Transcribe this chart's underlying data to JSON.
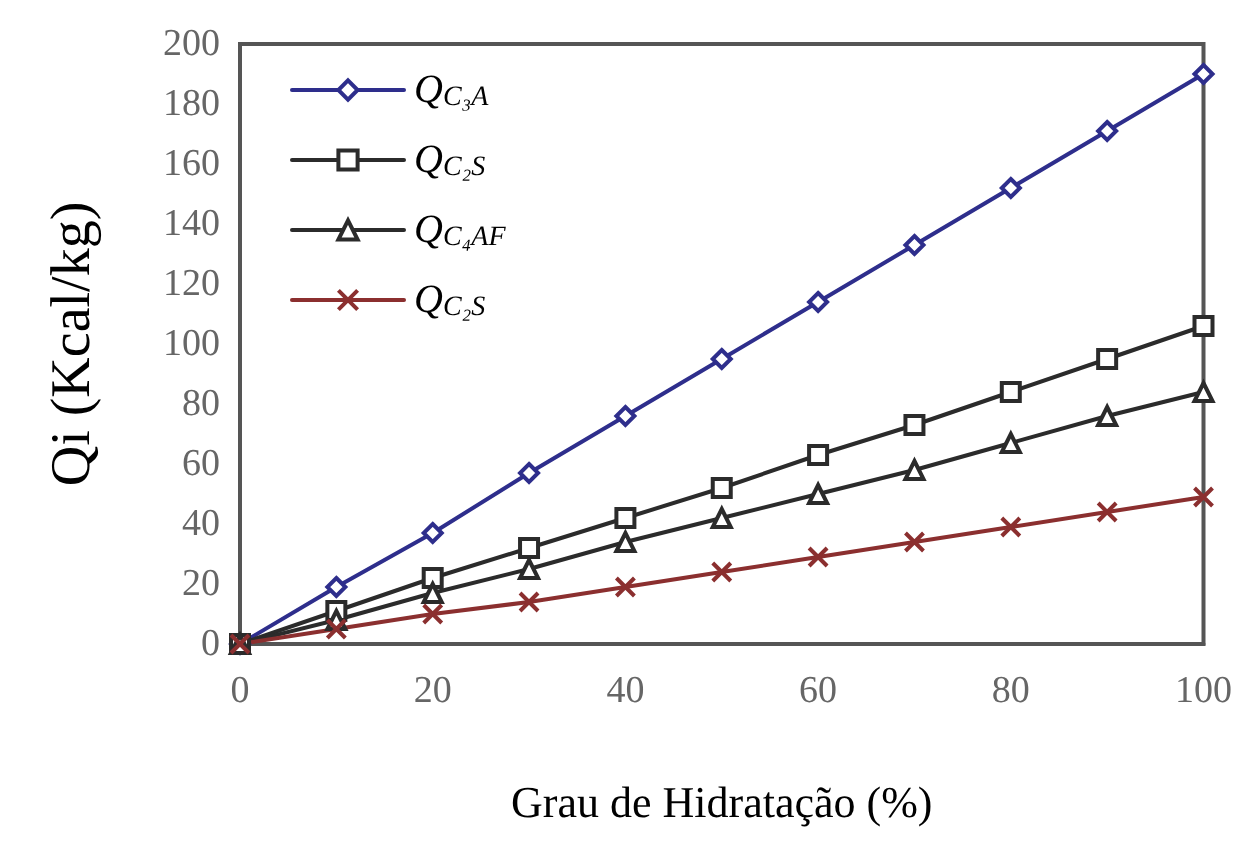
{
  "chart_data": {
    "type": "line",
    "xlabel": "Grau de Hidratação (%)",
    "ylabel": "Qi (Kcal/kg)",
    "x": [
      0,
      10,
      20,
      30,
      40,
      50,
      60,
      70,
      80,
      90,
      100
    ],
    "series": [
      {
        "name": "Q$_{C₃A}$",
        "color": "#2e2e8c",
        "marker": "diamond",
        "values": [
          0,
          19,
          37,
          57,
          76,
          95,
          114,
          133,
          152,
          171,
          190
        ]
      },
      {
        "name": "Q$_{C₂S}$",
        "color": "#2b2b2b",
        "marker": "square",
        "values": [
          0,
          11,
          22,
          32,
          42,
          52,
          63,
          73,
          84,
          95,
          106
        ]
      },
      {
        "name": "Q$_{C₄AF}$",
        "color": "#2b2b2b",
        "marker": "triangle",
        "values": [
          0,
          8,
          17,
          25,
          34,
          42,
          50,
          58,
          67,
          76,
          84
        ]
      },
      {
        "name": "Q$_{C₂S}$",
        "color": "#8b2f2f",
        "marker": "cross",
        "values": [
          0,
          5,
          10,
          14,
          19,
          24,
          29,
          34,
          39,
          44,
          49
        ]
      }
    ],
    "xlim": [
      0,
      100
    ],
    "xticks": [
      0,
      20,
      40,
      60,
      80,
      100
    ],
    "ylim": [
      0,
      200
    ],
    "yticks": [
      0,
      20,
      40,
      60,
      80,
      100,
      120,
      140,
      160,
      180,
      200
    ],
    "grid": false,
    "legend": "top left",
    "line_style": "solid"
  }
}
